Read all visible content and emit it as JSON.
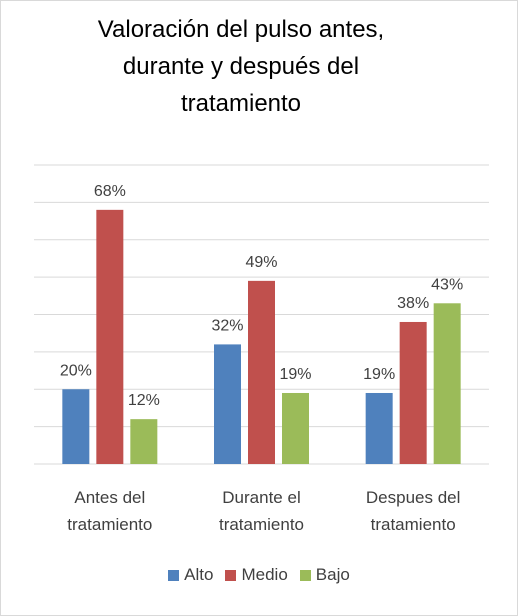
{
  "chart_data": {
    "type": "bar",
    "title": "Valoración del pulso antes, durante y después del tratamiento",
    "categories": [
      "Antes del tratamiento",
      "Durante el tratamiento",
      "Despues del tratamiento"
    ],
    "series": [
      {
        "name": "Alto",
        "color": "#4f81bd",
        "values": [
          20,
          32,
          19
        ],
        "value_labels": [
          "20%",
          "32%",
          "19%"
        ]
      },
      {
        "name": "Medio",
        "color": "#c0504d",
        "values": [
          68,
          49,
          38
        ],
        "value_labels": [
          "68%",
          "49%",
          "38%"
        ]
      },
      {
        "name": "Bajo",
        "color": "#9bbb59",
        "values": [
          12,
          19,
          43
        ],
        "value_labels": [
          "12%",
          "19%",
          "43%"
        ]
      }
    ],
    "ylim": [
      0,
      80
    ],
    "yticks": [
      0,
      10,
      20,
      30,
      40,
      50,
      60,
      70,
      80
    ],
    "grid": true,
    "legend": "bottom"
  }
}
